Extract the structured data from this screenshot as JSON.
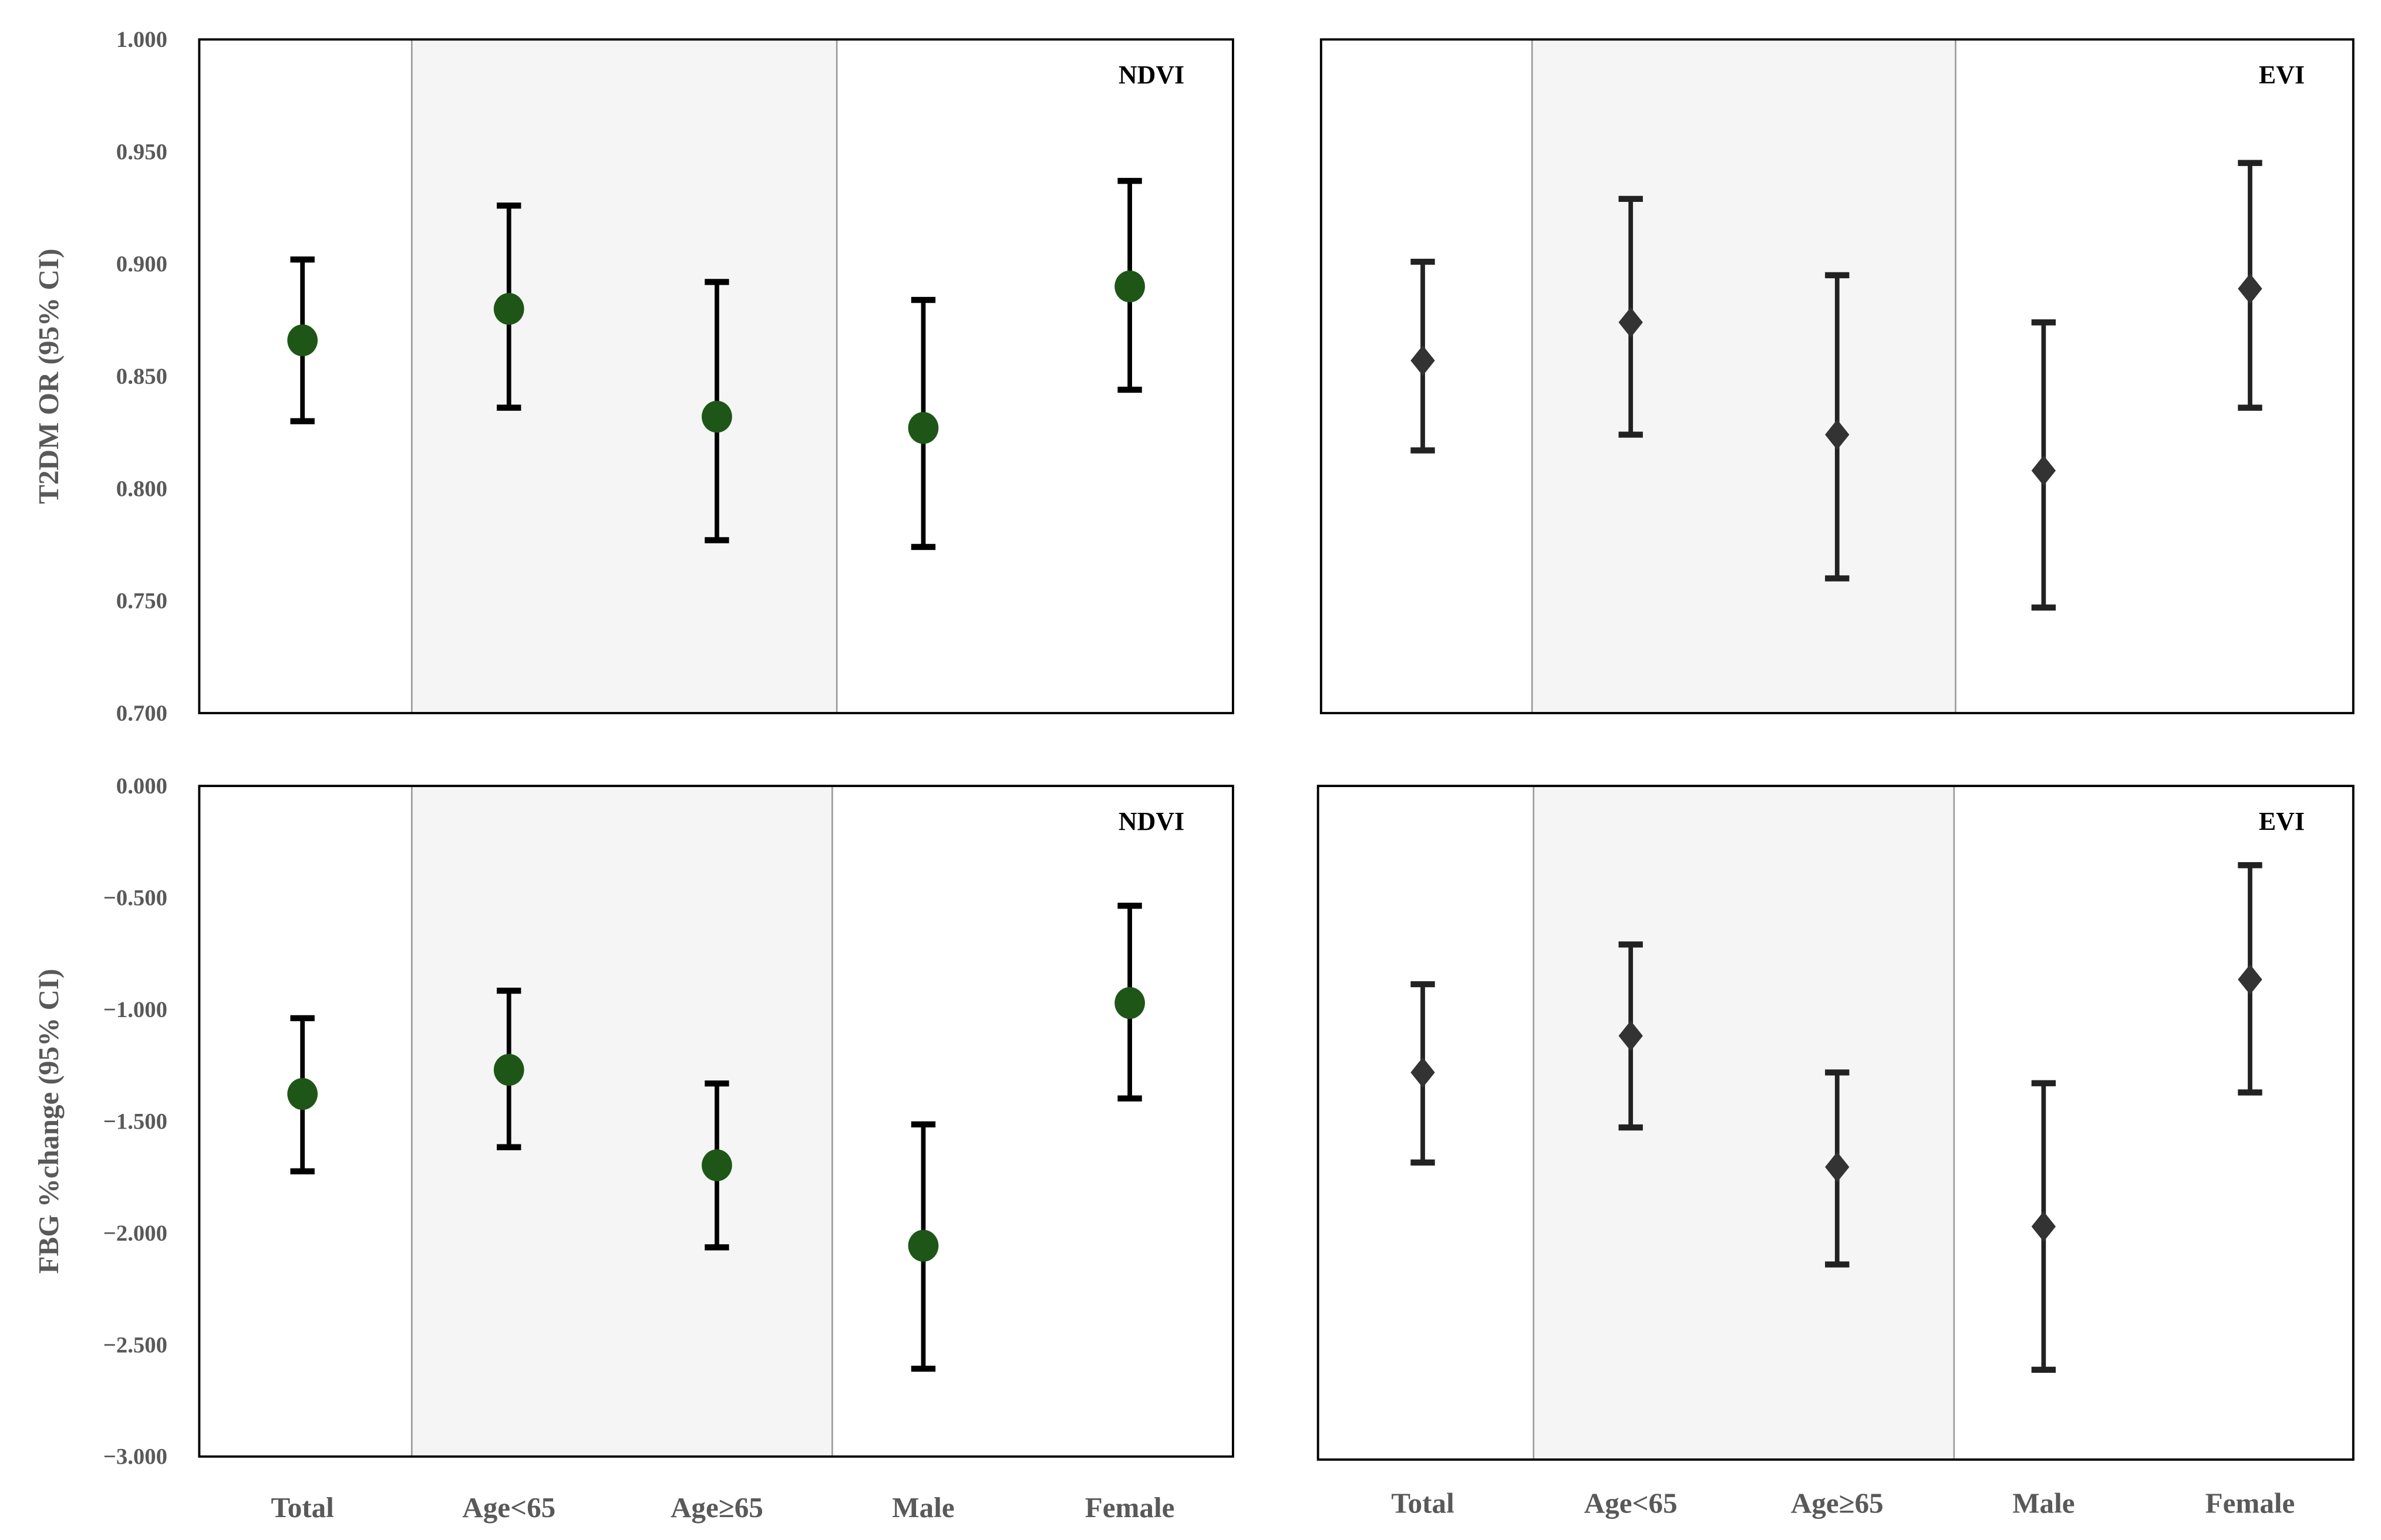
{
  "chart_data": [
    {
      "type": "scatter",
      "panel_label": "NDVI",
      "ylabel": "T2DM OR (95% CI)",
      "ylim": [
        0.7,
        1.0
      ],
      "yticks": [
        "1.000",
        "0.950",
        "0.900",
        "0.850",
        "0.800",
        "0.750",
        "0.700"
      ],
      "categories": [
        "Total",
        "Age<65",
        "Age≥65",
        "Male",
        "Female"
      ],
      "marker": "circle",
      "color": "#1e5618",
      "values": [
        0.866,
        0.88,
        0.832,
        0.827,
        0.89
      ],
      "ci_lower": [
        0.83,
        0.836,
        0.777,
        0.774,
        0.844
      ],
      "ci_upper": [
        0.902,
        0.926,
        0.892,
        0.884,
        0.937
      ]
    },
    {
      "type": "scatter",
      "panel_label": "EVI",
      "ylim": [
        0.7,
        1.0
      ],
      "categories": [
        "Total",
        "Age<65",
        "Age≥65",
        "Male",
        "Female"
      ],
      "marker": "diamond",
      "color": "#333333",
      "values": [
        0.857,
        0.874,
        0.824,
        0.808,
        0.889
      ],
      "ci_lower": [
        0.817,
        0.824,
        0.76,
        0.747,
        0.836
      ],
      "ci_upper": [
        0.901,
        0.929,
        0.895,
        0.874,
        0.945
      ]
    },
    {
      "type": "scatter",
      "panel_label": "NDVI",
      "ylabel": "FBG %change (95% CI)",
      "ylim": [
        -3.0,
        0.0
      ],
      "yticks": [
        "0.000",
        "-0.500",
        "-1.000",
        "-1.500",
        "-2.000",
        "-2.500",
        "-3.000"
      ],
      "categories": [
        "Total",
        "Age<65",
        "Age≥65",
        "Male",
        "Female"
      ],
      "marker": "circle",
      "color": "#1e5618",
      "values": [
        -1.378,
        -1.27,
        -1.697,
        -2.057,
        -0.971
      ],
      "ci_lower": [
        -1.724,
        -1.616,
        -2.064,
        -2.607,
        -1.398
      ],
      "ci_upper": [
        -1.039,
        -0.916,
        -1.331,
        -1.514,
        -0.536
      ]
    },
    {
      "type": "scatter",
      "panel_label": "EVI",
      "ylim": [
        -3.0,
        0.0
      ],
      "categories": [
        "Total",
        "Age<65",
        "Age≥65",
        "Male",
        "Female"
      ],
      "marker": "diamond",
      "color": "#333333",
      "values": [
        -1.276,
        -1.113,
        -1.697,
        -1.962,
        -0.862
      ],
      "ci_lower": [
        -1.677,
        -1.521,
        -2.131,
        -2.6,
        -1.365
      ],
      "ci_upper": [
        -0.883,
        -0.706,
        -1.276,
        -1.324,
        -0.353
      ]
    }
  ],
  "colors": {
    "shaded_band": "#f5f5f5",
    "axis_text": "#595959"
  }
}
